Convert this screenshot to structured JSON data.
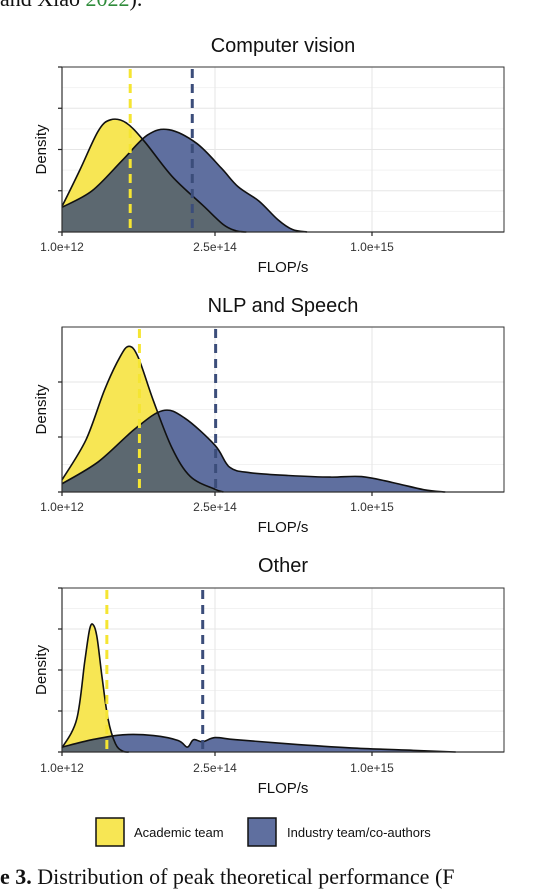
{
  "captions": {
    "top_text": "and Xiao ",
    "top_cite": "2022",
    "top_tail": ").",
    "bottom_bold": "e 3.",
    "bottom_text": " Distribution of peak theoretical performance (F"
  },
  "colors": {
    "academic_fill": "#f7e654",
    "industry_fill": "#5f6f9f",
    "overlap_fill": "#5c6870",
    "academic_line": "#f5e532",
    "industry_line": "#3b4d7a",
    "grid_major": "#e6e6e6",
    "grid_minor": "#f2f2f2"
  },
  "chart_data": [
    {
      "type": "area",
      "title": "Computer vision",
      "xlabel": "FLOP/s",
      "ylabel": "Density",
      "xlim": [
        1000000000000.0,
        1450000000000000.0
      ],
      "ylim": [
        0,
        4.0
      ],
      "x_ticks": [
        1000000000000.0,
        250000000000000.0,
        1000000000000000.0
      ],
      "x_tick_labels": [
        "1.0e+12",
        "2.5e+14",
        "1.0e+15"
      ],
      "y_ticks": [
        1,
        2,
        3,
        4
      ],
      "y_tick_labels": [
        "",
        "",
        "",
        ""
      ],
      "grid": true,
      "series": [
        {
          "name": "Academic team",
          "points": [
            [
              1000000000000.0,
              0.62
            ],
            [
              30000000000000.0,
              1.5
            ],
            [
              60000000000000.0,
              2.45
            ],
            [
              80000000000000.0,
              2.72
            ],
            [
              105000000000000.0,
              2.65
            ],
            [
              135000000000000.0,
              2.2
            ],
            [
              180000000000000.0,
              1.35
            ],
            [
              230000000000000.0,
              0.65
            ],
            [
              290000000000000.0,
              0.18
            ],
            [
              350000000000000.0,
              0.03
            ],
            [
              400000000000000.0,
              0.0
            ]
          ],
          "mean": 112000000000000.0
        },
        {
          "name": "Industry team/co-authors",
          "points": [
            [
              1000000000000.0,
              0.6
            ],
            [
              50000000000000.0,
              1.0
            ],
            [
              100000000000000.0,
              1.75
            ],
            [
              140000000000000.0,
              2.35
            ],
            [
              175000000000000.0,
              2.48
            ],
            [
              220000000000000.0,
              2.15
            ],
            [
              280000000000000.0,
              1.55
            ],
            [
              360000000000000.0,
              1.1
            ],
            [
              460000000000000.0,
              0.75
            ],
            [
              550000000000000.0,
              0.3
            ],
            [
              620000000000000.0,
              0.06
            ],
            [
              690000000000000.0,
              0.0
            ]
          ],
          "mean": 213000000000000.0
        }
      ]
    },
    {
      "type": "area",
      "title": "NLP and Speech",
      "xlabel": "FLOP/s",
      "ylabel": "Density",
      "xlim": [
        1000000000000.0,
        1450000000000000.0
      ],
      "ylim": [
        0,
        3.0
      ],
      "x_ticks": [
        1000000000000.0,
        250000000000000.0,
        1000000000000000.0
      ],
      "x_tick_labels": [
        "1.0e+12",
        "2.5e+14",
        "1.0e+15"
      ],
      "y_ticks": [
        1,
        2
      ],
      "y_tick_labels": [
        "",
        ""
      ],
      "grid": true,
      "series": [
        {
          "name": "Academic team",
          "points": [
            [
              1000000000000.0,
              0.22
            ],
            [
              40000000000000.0,
              0.95
            ],
            [
              70000000000000.0,
              1.85
            ],
            [
              95000000000000.0,
              2.45
            ],
            [
              110000000000000.0,
              2.65
            ],
            [
              125000000000000.0,
              2.45
            ],
            [
              150000000000000.0,
              1.65
            ],
            [
              180000000000000.0,
              0.8
            ],
            [
              210000000000000.0,
              0.28
            ],
            [
              250000000000000.0,
              0.05
            ],
            [
              290000000000000.0,
              0.0
            ]
          ],
          "mean": 127000000000000.0
        },
        {
          "name": "Industry team/co-authors",
          "points": [
            [
              1000000000000.0,
              0.15
            ],
            [
              60000000000000.0,
              0.55
            ],
            [
              120000000000000.0,
              1.15
            ],
            [
              165000000000000.0,
              1.48
            ],
            [
              200000000000000.0,
              1.35
            ],
            [
              250000000000000.0,
              0.85
            ],
            [
              320000000000000.0,
              0.45
            ],
            [
              420000000000000.0,
              0.35
            ],
            [
              600000000000000.0,
              0.3
            ],
            [
              800000000000000.0,
              0.27
            ],
            [
              950000000000000.0,
              0.28
            ],
            [
              1100000000000000.0,
              0.17
            ],
            [
              1250000000000000.0,
              0.04
            ],
            [
              1350000000000000.0,
              0.0
            ]
          ],
          "mean": 253000000000000.0
        }
      ]
    },
    {
      "type": "area",
      "title": "Other",
      "xlabel": "FLOP/s",
      "ylabel": "Density",
      "xlim": [
        1000000000000.0,
        1450000000000000.0
      ],
      "ylim": [
        0,
        4.0
      ],
      "x_ticks": [
        1000000000000.0,
        250000000000000.0,
        1000000000000000.0
      ],
      "x_tick_labels": [
        "1.0e+12",
        "2.5e+14",
        "1.0e+15"
      ],
      "y_ticks": [
        1,
        2,
        3,
        4
      ],
      "y_tick_labels": [
        "",
        "",
        "",
        ""
      ],
      "grid": true,
      "series": [
        {
          "name": "Academic team",
          "points": [
            [
              1000000000000.0,
              0.1
            ],
            [
              25000000000000.0,
              0.8
            ],
            [
              38000000000000.0,
              2.2
            ],
            [
              46000000000000.0,
              3.0
            ],
            [
              52000000000000.0,
              3.1
            ],
            [
              58000000000000.0,
              2.8
            ],
            [
              66000000000000.0,
              1.85
            ],
            [
              76000000000000.0,
              0.8
            ],
            [
              88000000000000.0,
              0.2
            ],
            [
              100000000000000.0,
              0.02
            ],
            [
              110000000000000.0,
              0.0
            ]
          ],
          "mean": 74000000000000.0
        },
        {
          "name": "Industry team/co-authors",
          "points": [
            [
              1000000000000.0,
              0.12
            ],
            [
              50000000000000.0,
              0.3
            ],
            [
              100000000000000.0,
              0.42
            ],
            [
              150000000000000.0,
              0.4
            ],
            [
              190000000000000.0,
              0.28
            ],
            [
              205000000000000.0,
              0.12
            ],
            [
              215000000000000.0,
              0.3
            ],
            [
              230000000000000.0,
              0.25
            ],
            [
              250000000000000.0,
              0.35
            ],
            [
              350000000000000.0,
              0.3
            ],
            [
              600000000000000.0,
              0.2
            ],
            [
              900000000000000.0,
              0.1
            ],
            [
              1200000000000000.0,
              0.04
            ],
            [
              1400000000000000.0,
              0.0
            ]
          ],
          "mean": 230000000000000.0
        }
      ]
    }
  ],
  "legend": {
    "placement": "bottom",
    "items": [
      {
        "label": "Academic team"
      },
      {
        "label": "Industry team/co-authors"
      }
    ]
  }
}
